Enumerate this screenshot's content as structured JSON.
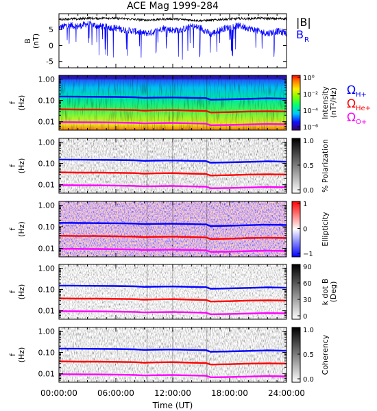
{
  "title": "ACE Mag 1999-284",
  "xaxis": {
    "label": "Time (UT)",
    "ticks": [
      "00:00:00",
      "06:00:00",
      "12:00:00",
      "18:00:00",
      "24:00:00"
    ]
  },
  "freq_ticks": [
    "1.00",
    "0.10",
    "0.01"
  ],
  "legend_top": {
    "B_total": "|B|",
    "B_R": "B",
    "B_R_sub": "R"
  },
  "legend_omega": [
    {
      "symbol": "Ω",
      "sub": "H+",
      "color": "#0000ff"
    },
    {
      "symbol": "Ω",
      "sub": "He+",
      "color": "#ff0000"
    },
    {
      "symbol": "Ω",
      "sub": "O+",
      "color": "#ff00ff"
    }
  ],
  "colors": {
    "b_total": "#000000",
    "b_r": "#0000ff",
    "H+": "#0000ff",
    "He+": "#ff0000",
    "O+": "#ff00ff"
  },
  "chart_data": [
    {
      "type": "line",
      "ylabel": "B",
      "yunit": "(nT)",
      "ylim": [
        -7,
        10
      ],
      "yticks": [
        "5",
        "0",
        "-5"
      ],
      "xlim_hours": [
        0,
        24
      ],
      "series": [
        {
          "name": "|B|",
          "color": "#000000",
          "x": [
            0,
            1,
            2,
            3,
            4,
            5,
            6,
            7,
            8,
            9,
            10,
            11,
            12,
            13,
            14,
            15,
            16,
            17,
            18,
            19,
            20,
            21,
            22,
            23,
            24
          ],
          "values": [
            8.2,
            8.4,
            8.3,
            8.6,
            8.5,
            8.7,
            8.5,
            8.4,
            8.2,
            8.0,
            8.1,
            8.3,
            8.4,
            8.2,
            8.0,
            7.8,
            7.9,
            8.2,
            8.3,
            8.5,
            8.4,
            8.6,
            8.5,
            8.4,
            8.5
          ]
        },
        {
          "name": "BR",
          "color": "#0000ff",
          "x": [
            0,
            1,
            2,
            3,
            4,
            5,
            6,
            7,
            8,
            9,
            10,
            11,
            12,
            13,
            14,
            15,
            16,
            17,
            18,
            19,
            20,
            21,
            22,
            23,
            24
          ],
          "values": [
            5.5,
            6.5,
            6.0,
            6.8,
            6.2,
            5.8,
            5.5,
            4.8,
            4.5,
            3.8,
            4.2,
            5.5,
            4.8,
            5.0,
            6.0,
            5.5,
            3.5,
            5.0,
            5.8,
            6.2,
            5.5,
            4.5,
            3.8,
            4.5,
            4.0
          ]
        }
      ]
    },
    {
      "type": "heatmap",
      "ylabel": "f",
      "yunit": "(Hz)",
      "yscale": "log",
      "ylim": [
        0.004,
        1.5
      ],
      "colorbar": {
        "label": "Intensity",
        "unit": "(nT²/Hz)",
        "ticks": [
          "10⁰",
          "10⁻²",
          "10⁻⁴",
          "10⁻⁶"
        ],
        "scale": "rainbow"
      }
    },
    {
      "type": "heatmap",
      "ylabel": "f",
      "yunit": "(Hz)",
      "yscale": "log",
      "ylim": [
        0.004,
        1.5
      ],
      "colorbar": {
        "label": "% Polarization",
        "ticks": [
          "1.0",
          "0.5",
          "0.0"
        ],
        "scale": "gray"
      }
    },
    {
      "type": "heatmap",
      "ylabel": "f",
      "yunit": "(Hz)",
      "yscale": "log",
      "ylim": [
        0.004,
        1.5
      ],
      "colorbar": {
        "label": "Ellipticity",
        "ticks": [
          "1",
          "0",
          "−1"
        ],
        "scale": "bwr"
      }
    },
    {
      "type": "heatmap",
      "ylabel": "f",
      "yunit": "(Hz)",
      "yscale": "log",
      "ylim": [
        0.004,
        1.5
      ],
      "colorbar": {
        "label": "k dot B",
        "unit": "(Deg)",
        "ticks": [
          "90",
          "60",
          "30",
          "0"
        ],
        "scale": "gray"
      }
    },
    {
      "type": "heatmap",
      "ylabel": "f",
      "yunit": "(Hz)",
      "yscale": "log",
      "ylim": [
        0.004,
        1.5
      ],
      "colorbar": {
        "label": "Coherency",
        "ticks": [
          "1.0",
          "0.5",
          "0.0"
        ],
        "scale": "gray"
      }
    }
  ],
  "gyrofrequency_lines": {
    "x": [
      0,
      2,
      4,
      6,
      8,
      9,
      10,
      12,
      14,
      15.5,
      16,
      18,
      20,
      22,
      24
    ],
    "H+": [
      0.152,
      0.15,
      0.148,
      0.145,
      0.14,
      0.132,
      0.135,
      0.138,
      0.132,
      0.128,
      0.108,
      0.112,
      0.118,
      0.125,
      0.12
    ],
    "He+": [
      0.038,
      0.037,
      0.037,
      0.036,
      0.035,
      0.033,
      0.034,
      0.035,
      0.033,
      0.032,
      0.027,
      0.028,
      0.03,
      0.031,
      0.03
    ],
    "O+": [
      0.0095,
      0.0094,
      0.0093,
      0.0091,
      0.0088,
      0.0083,
      0.0085,
      0.0087,
      0.0083,
      0.008,
      0.0068,
      0.007,
      0.0074,
      0.0078,
      0.0075
    ]
  }
}
